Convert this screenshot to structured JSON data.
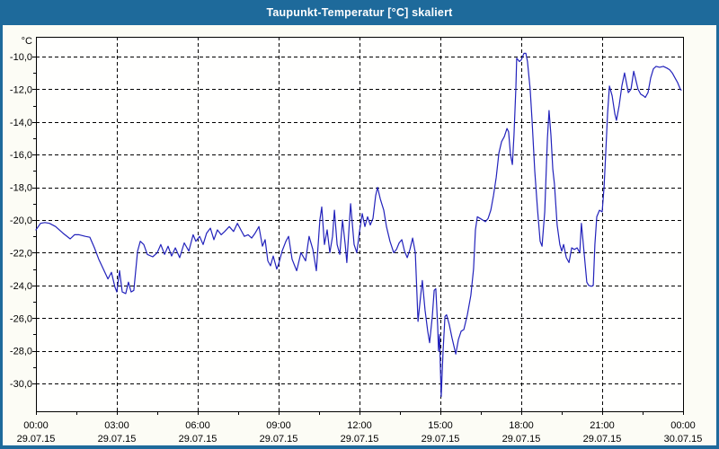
{
  "window": {
    "title": "Taupunkt-Temperatur [°C] skaliert"
  },
  "colors": {
    "titlebar_bg": "#1e6a9b",
    "titlebar_text": "#ffffff",
    "frame": "#1e6a9b",
    "page_bg": "#fcfcf5",
    "plot_bg": "#fffffe",
    "plot_border": "#000000",
    "grid": "#000000",
    "tick": "#000000",
    "label_text": "#000000",
    "line": "#2222bb"
  },
  "chart_data": {
    "type": "line",
    "title": "Taupunkt-Temperatur [°C] skaliert",
    "unit_label": "°C",
    "grid": "dashed",
    "legend": "none",
    "x_axis": {
      "range_hours": [
        0,
        24
      ],
      "minor_tick_step_hours": 1.5,
      "grid_hours": [
        3,
        6,
        9,
        12,
        15,
        18,
        21
      ],
      "ticks": [
        {
          "hour": 0,
          "time": "00:00",
          "date": "29.07.15"
        },
        {
          "hour": 3,
          "time": "03:00",
          "date": "29.07.15"
        },
        {
          "hour": 6,
          "time": "06:00",
          "date": "29.07.15"
        },
        {
          "hour": 9,
          "time": "09:00",
          "date": "29.07.15"
        },
        {
          "hour": 12,
          "time": "12:00",
          "date": "29.07.15"
        },
        {
          "hour": 15,
          "time": "15:00",
          "date": "29.07.15"
        },
        {
          "hour": 18,
          "time": "18:00",
          "date": "29.07.15"
        },
        {
          "hour": 21,
          "time": "21:00",
          "date": "29.07.15"
        },
        {
          "hour": 24,
          "time": "00:00",
          "date": "30.07.15"
        }
      ]
    },
    "y_axis": {
      "range": [
        -31.7,
        -8.79
      ],
      "minor_tick_step": 1,
      "ticks": [
        {
          "label": "-10,0",
          "value": -10
        },
        {
          "label": "-12,0",
          "value": -12
        },
        {
          "label": "-14,0",
          "value": -14
        },
        {
          "label": "-16,0",
          "value": -16
        },
        {
          "label": "-18,0",
          "value": -18
        },
        {
          "label": "-20,0",
          "value": -20
        },
        {
          "label": "-22,0",
          "value": -22
        },
        {
          "label": "-24,0",
          "value": -24
        },
        {
          "label": "-26,0",
          "value": -26
        },
        {
          "label": "-28,0",
          "value": -28
        },
        {
          "label": "-30,0",
          "value": -30
        }
      ]
    },
    "series": [
      {
        "name": "Taupunkt-Temperatur",
        "points": [
          [
            0,
            -20.6
          ],
          [
            0.17,
            -20.2
          ],
          [
            0.33,
            -20.15
          ],
          [
            0.5,
            -20.2
          ],
          [
            0.73,
            -20.4
          ],
          [
            1,
            -20.8
          ],
          [
            1.27,
            -21.15
          ],
          [
            1.43,
            -20.9
          ],
          [
            1.6,
            -20.9
          ],
          [
            1.83,
            -21.0
          ],
          [
            2,
            -21.05
          ],
          [
            2.17,
            -21.7
          ],
          [
            2.33,
            -22.4
          ],
          [
            2.5,
            -23.0
          ],
          [
            2.67,
            -23.6
          ],
          [
            2.8,
            -23.2
          ],
          [
            2.93,
            -24.1
          ],
          [
            3.0,
            -24.4
          ],
          [
            3.1,
            -23.1
          ],
          [
            3.2,
            -24.4
          ],
          [
            3.33,
            -24.5
          ],
          [
            3.43,
            -23.8
          ],
          [
            3.53,
            -24.4
          ],
          [
            3.63,
            -24.3
          ],
          [
            3.77,
            -21.9
          ],
          [
            3.87,
            -21.3
          ],
          [
            4,
            -21.5
          ],
          [
            4.13,
            -22.1
          ],
          [
            4.33,
            -22.25
          ],
          [
            4.5,
            -22.0
          ],
          [
            4.63,
            -21.5
          ],
          [
            4.77,
            -22.1
          ],
          [
            4.9,
            -21.6
          ],
          [
            5.03,
            -22.2
          ],
          [
            5.17,
            -21.7
          ],
          [
            5.33,
            -22.3
          ],
          [
            5.5,
            -21.4
          ],
          [
            5.67,
            -21.9
          ],
          [
            5.83,
            -20.9
          ],
          [
            5.93,
            -21.3
          ],
          [
            6.07,
            -21.0
          ],
          [
            6.2,
            -21.5
          ],
          [
            6.33,
            -20.8
          ],
          [
            6.47,
            -20.5
          ],
          [
            6.6,
            -21.2
          ],
          [
            6.73,
            -20.6
          ],
          [
            6.87,
            -20.9
          ],
          [
            7,
            -20.7
          ],
          [
            7.17,
            -20.4
          ],
          [
            7.33,
            -20.7
          ],
          [
            7.47,
            -20.2
          ],
          [
            7.6,
            -20.6
          ],
          [
            7.73,
            -21.0
          ],
          [
            7.87,
            -20.9
          ],
          [
            8,
            -21.1
          ],
          [
            8.13,
            -20.8
          ],
          [
            8.27,
            -20.4
          ],
          [
            8.4,
            -21.6
          ],
          [
            8.5,
            -21.2
          ],
          [
            8.6,
            -22.5
          ],
          [
            8.7,
            -22.8
          ],
          [
            8.8,
            -22.2
          ],
          [
            8.93,
            -23.0
          ],
          [
            9,
            -22.7
          ],
          [
            9.13,
            -21.9
          ],
          [
            9.27,
            -21.3
          ],
          [
            9.37,
            -21.0
          ],
          [
            9.5,
            -22.4
          ],
          [
            9.67,
            -23.1
          ],
          [
            9.83,
            -22.0
          ],
          [
            10,
            -22.5
          ],
          [
            10.13,
            -21.0
          ],
          [
            10.27,
            -21.8
          ],
          [
            10.4,
            -23.1
          ],
          [
            10.53,
            -20.0
          ],
          [
            10.6,
            -19.2
          ],
          [
            10.7,
            -21.5
          ],
          [
            10.8,
            -20.6
          ],
          [
            10.9,
            -22.0
          ],
          [
            11,
            -21.0
          ],
          [
            11.07,
            -19.4
          ],
          [
            11.17,
            -21.5
          ],
          [
            11.27,
            -22.1
          ],
          [
            11.37,
            -20.0
          ],
          [
            11.47,
            -21.5
          ],
          [
            11.53,
            -22.6
          ],
          [
            11.67,
            -19.0
          ],
          [
            11.8,
            -21.5
          ],
          [
            11.9,
            -22.0
          ],
          [
            12,
            -20.7
          ],
          [
            12.1,
            -19.6
          ],
          [
            12.2,
            -20.4
          ],
          [
            12.3,
            -19.8
          ],
          [
            12.4,
            -20.3
          ],
          [
            12.5,
            -19.9
          ],
          [
            12.6,
            -18.5
          ],
          [
            12.67,
            -18.0
          ],
          [
            12.77,
            -18.7
          ],
          [
            12.9,
            -19.4
          ],
          [
            13,
            -20.4
          ],
          [
            13.13,
            -21.3
          ],
          [
            13.27,
            -22.0
          ],
          [
            13.37,
            -21.8
          ],
          [
            13.47,
            -21.4
          ],
          [
            13.57,
            -21.2
          ],
          [
            13.67,
            -21.9
          ],
          [
            13.77,
            -22.3
          ],
          [
            13.87,
            -21.8
          ],
          [
            13.97,
            -21.1
          ],
          [
            14.07,
            -22.0
          ],
          [
            14.13,
            -24.5
          ],
          [
            14.17,
            -26.2
          ],
          [
            14.27,
            -24.6
          ],
          [
            14.33,
            -23.7
          ],
          [
            14.43,
            -25.5
          ],
          [
            14.53,
            -26.8
          ],
          [
            14.6,
            -27.5
          ],
          [
            14.7,
            -25.9
          ],
          [
            14.77,
            -24.3
          ],
          [
            14.83,
            -24.2
          ],
          [
            14.9,
            -26.5
          ],
          [
            14.93,
            -28.0
          ],
          [
            14.97,
            -27.0
          ],
          [
            15,
            -29.0
          ],
          [
            15.03,
            -30.8
          ],
          [
            15.1,
            -28.0
          ],
          [
            15.17,
            -25.9
          ],
          [
            15.23,
            -25.8
          ],
          [
            15.33,
            -26.4
          ],
          [
            15.43,
            -27.2
          ],
          [
            15.57,
            -28.2
          ],
          [
            15.67,
            -27.3
          ],
          [
            15.77,
            -26.8
          ],
          [
            15.87,
            -26.7
          ],
          [
            16,
            -25.8
          ],
          [
            16.13,
            -24.6
          ],
          [
            16.23,
            -23.0
          ],
          [
            16.3,
            -20.6
          ],
          [
            16.37,
            -19.8
          ],
          [
            16.47,
            -19.9
          ],
          [
            16.57,
            -20.0
          ],
          [
            16.67,
            -20.1
          ],
          [
            16.77,
            -19.9
          ],
          [
            16.87,
            -19.4
          ],
          [
            16.97,
            -18.5
          ],
          [
            17.07,
            -17.4
          ],
          [
            17.17,
            -15.9
          ],
          [
            17.27,
            -15.2
          ],
          [
            17.37,
            -14.9
          ],
          [
            17.47,
            -14.4
          ],
          [
            17.53,
            -14.6
          ],
          [
            17.6,
            -16.0
          ],
          [
            17.67,
            -16.6
          ],
          [
            17.73,
            -14.8
          ],
          [
            17.8,
            -11.9
          ],
          [
            17.83,
            -10.1
          ],
          [
            17.93,
            -10.3
          ],
          [
            18,
            -10.2
          ],
          [
            18.1,
            -9.8
          ],
          [
            18.17,
            -9.8
          ],
          [
            18.23,
            -10.3
          ],
          [
            18.33,
            -12.0
          ],
          [
            18.4,
            -13.9
          ],
          [
            18.5,
            -17.0
          ],
          [
            18.6,
            -19.3
          ],
          [
            18.7,
            -21.3
          ],
          [
            18.77,
            -21.6
          ],
          [
            18.87,
            -19.5
          ],
          [
            18.97,
            -15.0
          ],
          [
            19.03,
            -13.3
          ],
          [
            19.1,
            -14.8
          ],
          [
            19.17,
            -16.9
          ],
          [
            19.23,
            -17.8
          ],
          [
            19.33,
            -20.3
          ],
          [
            19.43,
            -21.5
          ],
          [
            19.5,
            -21.9
          ],
          [
            19.57,
            -21.5
          ],
          [
            19.67,
            -22.3
          ],
          [
            19.77,
            -22.6
          ],
          [
            19.87,
            -21.7
          ],
          [
            19.97,
            -21.8
          ],
          [
            20.07,
            -21.7
          ],
          [
            20.17,
            -22.0
          ],
          [
            20.23,
            -20.2
          ],
          [
            20.33,
            -22.0
          ],
          [
            20.43,
            -23.8
          ],
          [
            20.5,
            -24.0
          ],
          [
            20.6,
            -24.05
          ],
          [
            20.67,
            -24.0
          ],
          [
            20.73,
            -21.5
          ],
          [
            20.8,
            -19.8
          ],
          [
            20.9,
            -19.4
          ],
          [
            21,
            -19.5
          ],
          [
            21.07,
            -18.0
          ],
          [
            21.13,
            -16.0
          ],
          [
            21.2,
            -13.5
          ],
          [
            21.27,
            -11.8
          ],
          [
            21.37,
            -12.4
          ],
          [
            21.47,
            -13.5
          ],
          [
            21.53,
            -13.9
          ],
          [
            21.63,
            -13.0
          ],
          [
            21.73,
            -11.8
          ],
          [
            21.83,
            -11.0
          ],
          [
            21.9,
            -11.6
          ],
          [
            21.97,
            -12.2
          ],
          [
            22.07,
            -12.0
          ],
          [
            22.17,
            -10.9
          ],
          [
            22.23,
            -11.3
          ],
          [
            22.33,
            -12.0
          ],
          [
            22.43,
            -12.3
          ],
          [
            22.53,
            -12.4
          ],
          [
            22.6,
            -12.5
          ],
          [
            22.7,
            -12.2
          ],
          [
            22.8,
            -11.3
          ],
          [
            22.9,
            -10.75
          ],
          [
            23,
            -10.6
          ],
          [
            23.13,
            -10.65
          ],
          [
            23.27,
            -10.6
          ],
          [
            23.4,
            -10.7
          ],
          [
            23.5,
            -10.8
          ],
          [
            23.6,
            -11.0
          ],
          [
            23.7,
            -11.3
          ],
          [
            23.8,
            -11.6
          ],
          [
            23.9,
            -12.0
          ],
          [
            23.93,
            -12.05
          ]
        ]
      }
    ]
  }
}
